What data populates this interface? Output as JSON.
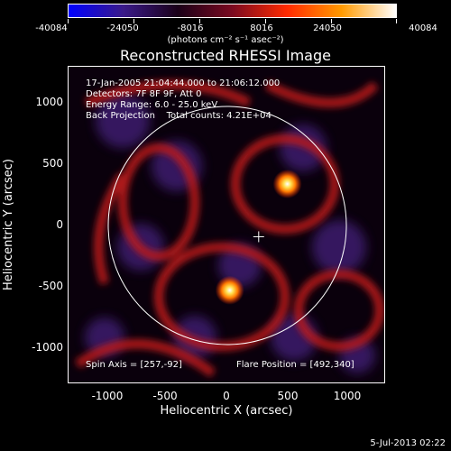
{
  "colorbar": {
    "tick_labels": [
      "-40084",
      "-24050",
      "-8016",
      "8016",
      "24050",
      "40084"
    ],
    "units": "(photons cm⁻² s⁻¹ asec⁻²)",
    "colors": [
      "#0000ff",
      "#3a1a8a",
      "#1a0018",
      "#7a0a20",
      "#ff2a00",
      "#ff9a00",
      "#ffffff"
    ]
  },
  "title": "Reconstructed RHESSI Image",
  "info": {
    "line1": "17-Jan-2005 21:04:44.000 to 21:06:12.000",
    "line2": "Detectors: 7F 8F 9F, Att 0",
    "line3": "Energy Range: 6.0 - 25.0 keV",
    "line4": "Back Projection    Total counts: 4.21E+04"
  },
  "spin_axis": "Spin Axis = [257,-92]",
  "flare_position": "Flare Position = [492,340]",
  "axes": {
    "xlabel": "Heliocentric X (arcsec)",
    "ylabel": "Heliocentric Y (arcsec)",
    "xticks": [
      "-1000",
      "-500",
      "0",
      "500",
      "1000"
    ],
    "yticks": [
      "1000",
      "500",
      "0",
      "-500",
      "-1000"
    ],
    "xlim": [
      -1300,
      1300
    ],
    "ylim": [
      -1300,
      1300
    ]
  },
  "sources": [
    {
      "x": 492,
      "y": 340
    },
    {
      "x": 20,
      "y": -530
    }
  ],
  "spin_center": {
    "x": 257,
    "y": -92
  },
  "solar_limb_radius": 975,
  "timestamp": "5-Jul-2013 02:22"
}
